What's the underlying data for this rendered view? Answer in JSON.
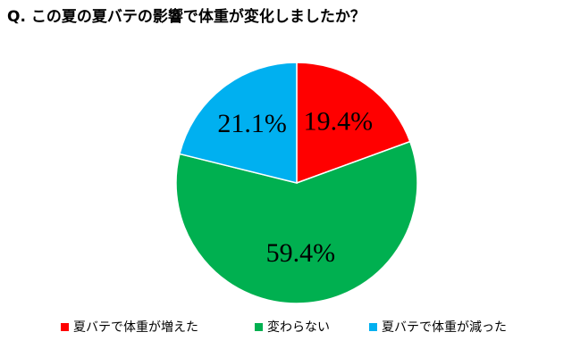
{
  "chart_data": {
    "type": "pie",
    "title": "Q. この夏の夏バテの影響で体重が変化しましたか？",
    "categories": [
      "夏バテで体重が増えた",
      "変わらない",
      "夏バテで体重が減った"
    ],
    "values": [
      19.4,
      59.4,
      21.1
    ],
    "value_labels": [
      "19.4%",
      "59.4%",
      "21.1%"
    ],
    "colors": [
      "#ff0000",
      "#00b050",
      "#00b0f0"
    ]
  }
}
